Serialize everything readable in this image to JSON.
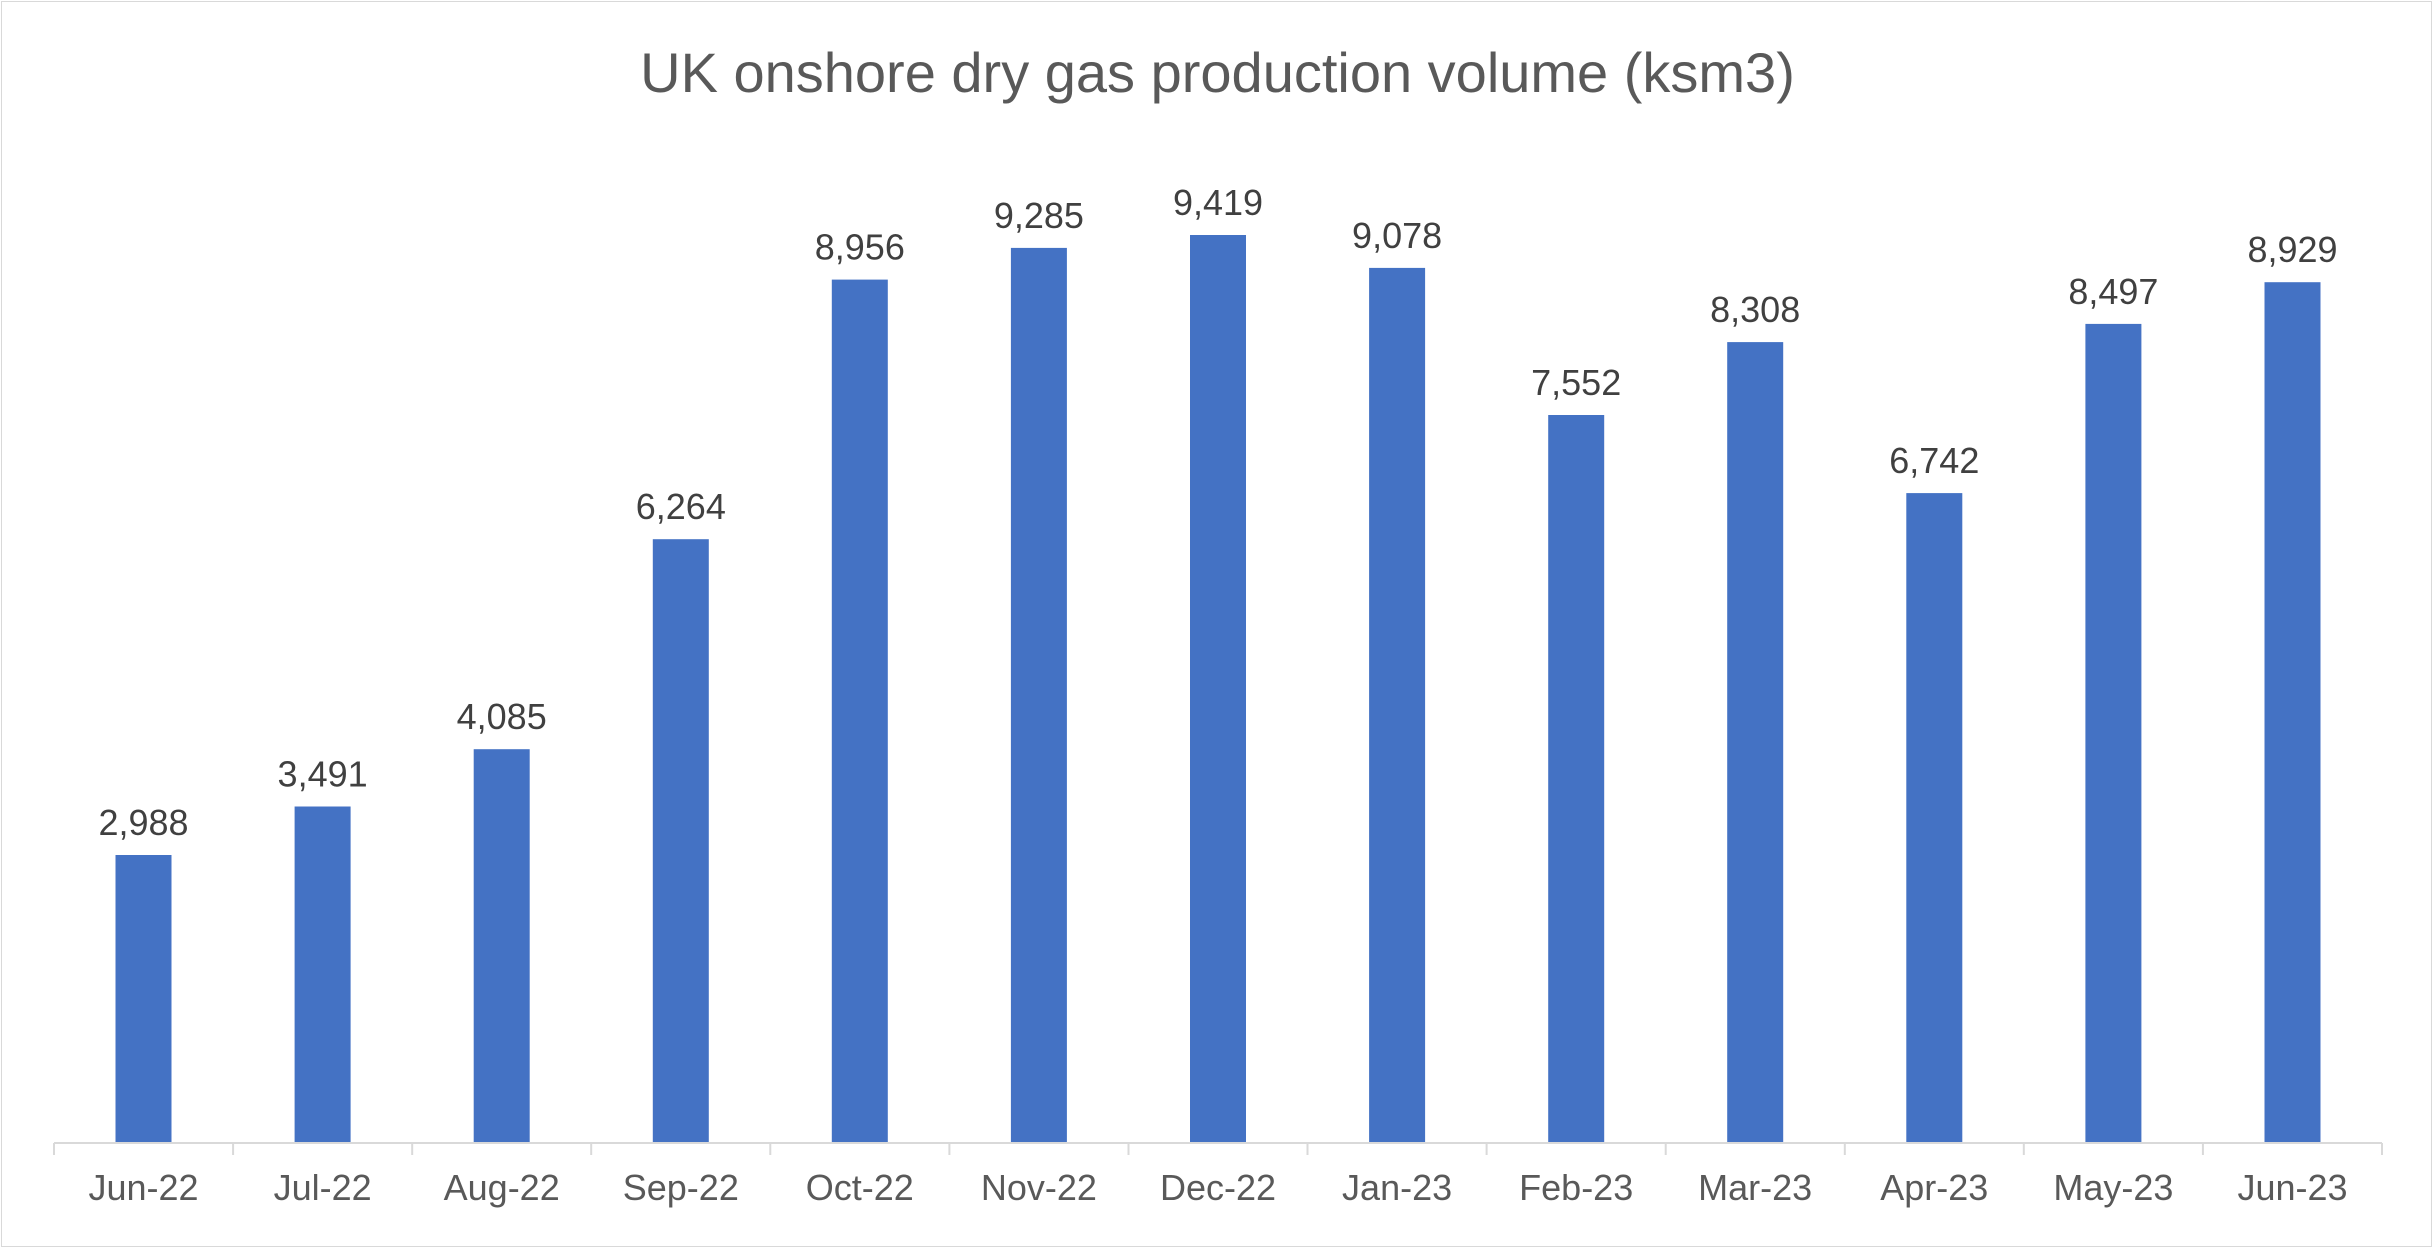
{
  "chart_data": {
    "type": "bar",
    "title": "UK onshore dry gas production volume (ksm3)",
    "xlabel": "",
    "ylabel": "",
    "categories": [
      "Jun-22",
      "Jul-22",
      "Aug-22",
      "Sep-22",
      "Oct-22",
      "Nov-22",
      "Dec-22",
      "Jan-23",
      "Feb-23",
      "Mar-23",
      "Apr-23",
      "May-23",
      "Jun-23"
    ],
    "values": [
      2988,
      3491,
      4085,
      6264,
      8956,
      9285,
      9419,
      9078,
      7552,
      8308,
      6742,
      8497,
      8929
    ],
    "data_labels": [
      "2,988",
      "3,491",
      "4,085",
      "6,264",
      "8,956",
      "9,285",
      "9,419",
      "9,078",
      "7,552",
      "8,308",
      "6,742",
      "8,497",
      "8,929"
    ],
    "ylim": [
      0,
      10000
    ],
    "grid": false,
    "legend": "none",
    "bar_color": "#4472C4",
    "axis_color": "#d9d9d9"
  }
}
